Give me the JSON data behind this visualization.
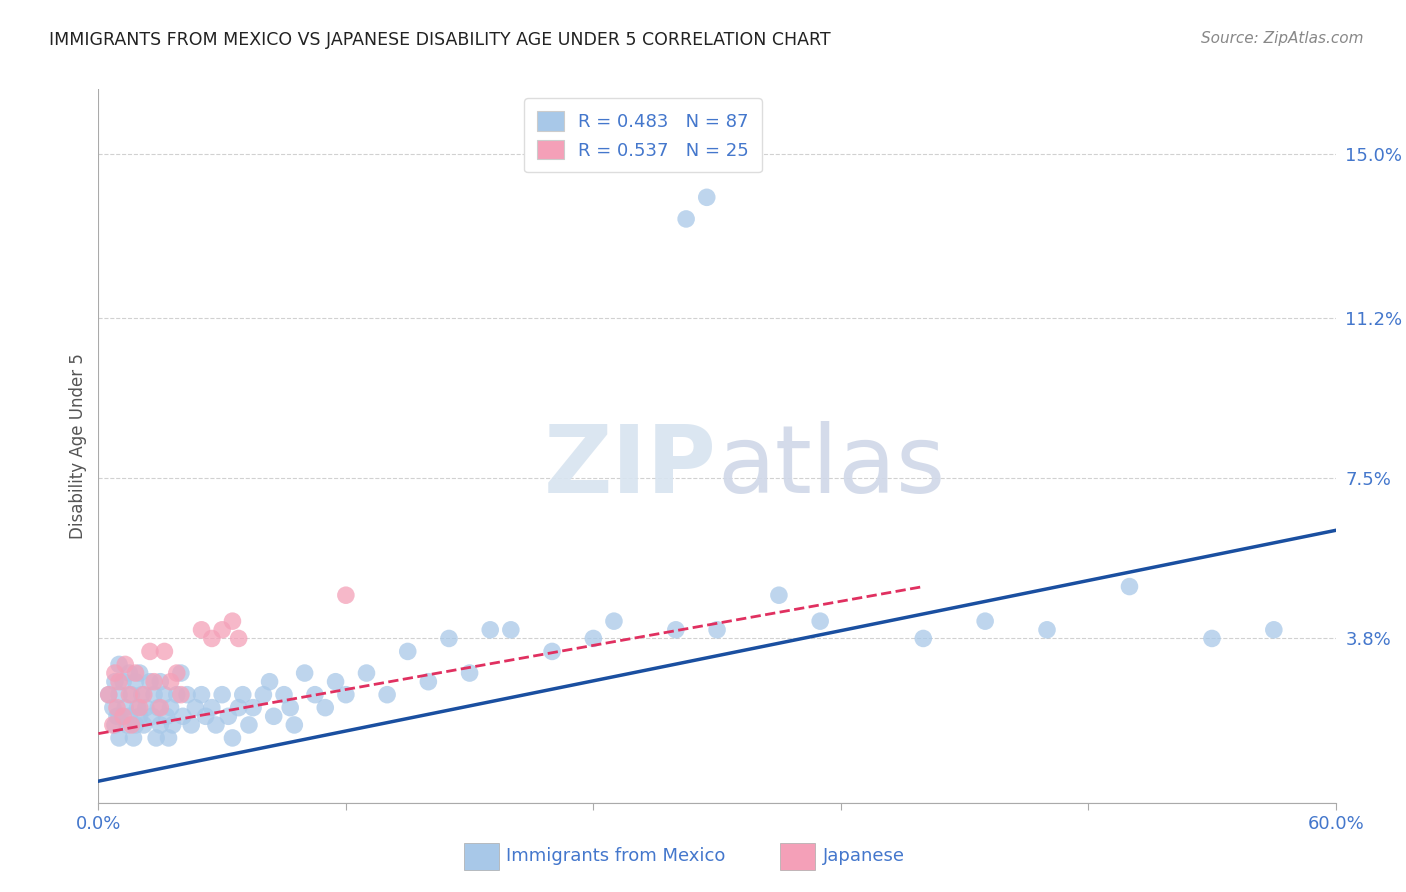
{
  "title": "IMMIGRANTS FROM MEXICO VS JAPANESE DISABILITY AGE UNDER 5 CORRELATION CHART",
  "source": "Source: ZipAtlas.com",
  "xlabel_blue": "Immigrants from Mexico",
  "xlabel_pink": "Japanese",
  "ylabel": "Disability Age Under 5",
  "xlim": [
    0.0,
    0.6
  ],
  "ylim": [
    0.0,
    0.165
  ],
  "ytick_labels_right": [
    "15.0%",
    "11.2%",
    "7.5%",
    "3.8%"
  ],
  "ytick_vals_right": [
    0.15,
    0.112,
    0.075,
    0.038
  ],
  "blue_R": 0.483,
  "blue_N": 87,
  "pink_R": 0.537,
  "pink_N": 25,
  "blue_color": "#a8c8e8",
  "pink_color": "#f4a0b8",
  "blue_line_color": "#1a4fa0",
  "pink_line_color": "#e03060",
  "background_color": "#ffffff",
  "grid_color": "#cccccc",
  "axis_color": "#4477cc",
  "title_color": "#222222",
  "watermark": "ZIPatlas",
  "blue_scatter_x": [
    0.005,
    0.007,
    0.008,
    0.008,
    0.009,
    0.01,
    0.01,
    0.01,
    0.01,
    0.012,
    0.013,
    0.014,
    0.015,
    0.015,
    0.016,
    0.017,
    0.018,
    0.018,
    0.019,
    0.02,
    0.02,
    0.021,
    0.022,
    0.023,
    0.025,
    0.026,
    0.027,
    0.028,
    0.029,
    0.03,
    0.03,
    0.032,
    0.033,
    0.034,
    0.035,
    0.036,
    0.038,
    0.04,
    0.041,
    0.043,
    0.045,
    0.047,
    0.05,
    0.052,
    0.055,
    0.057,
    0.06,
    0.063,
    0.065,
    0.068,
    0.07,
    0.073,
    0.075,
    0.08,
    0.083,
    0.085,
    0.09,
    0.093,
    0.095,
    0.1,
    0.105,
    0.11,
    0.115,
    0.12,
    0.13,
    0.14,
    0.15,
    0.16,
    0.17,
    0.18,
    0.19,
    0.2,
    0.22,
    0.24,
    0.25,
    0.28,
    0.3,
    0.33,
    0.35,
    0.4,
    0.43,
    0.46,
    0.5,
    0.54,
    0.57,
    0.285,
    0.295
  ],
  "blue_scatter_y": [
    0.025,
    0.022,
    0.028,
    0.018,
    0.02,
    0.032,
    0.025,
    0.02,
    0.015,
    0.028,
    0.022,
    0.018,
    0.03,
    0.02,
    0.025,
    0.015,
    0.018,
    0.028,
    0.022,
    0.03,
    0.02,
    0.025,
    0.018,
    0.022,
    0.028,
    0.02,
    0.025,
    0.015,
    0.022,
    0.028,
    0.018,
    0.025,
    0.02,
    0.015,
    0.022,
    0.018,
    0.025,
    0.03,
    0.02,
    0.025,
    0.018,
    0.022,
    0.025,
    0.02,
    0.022,
    0.018,
    0.025,
    0.02,
    0.015,
    0.022,
    0.025,
    0.018,
    0.022,
    0.025,
    0.028,
    0.02,
    0.025,
    0.022,
    0.018,
    0.03,
    0.025,
    0.022,
    0.028,
    0.025,
    0.03,
    0.025,
    0.035,
    0.028,
    0.038,
    0.03,
    0.04,
    0.04,
    0.035,
    0.038,
    0.042,
    0.04,
    0.04,
    0.048,
    0.042,
    0.038,
    0.042,
    0.04,
    0.05,
    0.038,
    0.04,
    0.135,
    0.14
  ],
  "pink_scatter_x": [
    0.005,
    0.007,
    0.008,
    0.009,
    0.01,
    0.012,
    0.013,
    0.015,
    0.016,
    0.018,
    0.02,
    0.022,
    0.025,
    0.027,
    0.03,
    0.032,
    0.035,
    0.038,
    0.04,
    0.05,
    0.055,
    0.06,
    0.065,
    0.068,
    0.12
  ],
  "pink_scatter_y": [
    0.025,
    0.018,
    0.03,
    0.022,
    0.028,
    0.02,
    0.032,
    0.025,
    0.018,
    0.03,
    0.022,
    0.025,
    0.035,
    0.028,
    0.022,
    0.035,
    0.028,
    0.03,
    0.025,
    0.04,
    0.038,
    0.04,
    0.042,
    0.038,
    0.048
  ],
  "blue_line_x": [
    0.0,
    0.6
  ],
  "blue_line_y": [
    0.005,
    0.063
  ],
  "pink_line_x": [
    0.0,
    0.4
  ],
  "pink_line_y": [
    0.016,
    0.05
  ]
}
